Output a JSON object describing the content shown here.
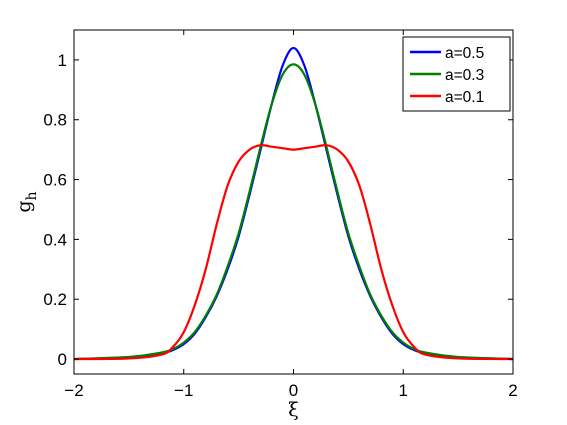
{
  "chart_data": {
    "type": "line",
    "xlabel": "ξ",
    "ylabel": "g",
    "ylabel_sub": "h",
    "xlim": [
      -2,
      2
    ],
    "ylim": [
      -0.05,
      1.1
    ],
    "xticks": [
      -2,
      -1,
      0,
      1,
      2
    ],
    "xtick_labels": [
      "−2",
      "−1",
      "0",
      "1",
      "2"
    ],
    "yticks": [
      0,
      0.2,
      0.4,
      0.6,
      0.8,
      1
    ],
    "ytick_labels": [
      "0",
      "0.2",
      "0.4",
      "0.6",
      "0.8",
      "1"
    ],
    "grid": false,
    "legend_position": "top-right",
    "x": [
      -2,
      -1.5,
      -1.2,
      -1.1,
      -1.0,
      -0.9,
      -0.8,
      -0.7,
      -0.6,
      -0.5,
      -0.4,
      -0.3,
      -0.2,
      -0.1,
      0,
      0.1,
      0.2,
      0.3,
      0.4,
      0.5,
      0.6,
      0.7,
      0.8,
      0.9,
      1.0,
      1.1,
      1.2,
      1.5,
      2
    ],
    "series": [
      {
        "name": "a=0.5",
        "color": "#0000ff",
        "values": [
          0.0,
          0.006,
          0.02,
          0.03,
          0.05,
          0.085,
          0.14,
          0.21,
          0.3,
          0.41,
          0.55,
          0.7,
          0.85,
          0.98,
          1.04,
          0.98,
          0.85,
          0.7,
          0.55,
          0.41,
          0.3,
          0.21,
          0.14,
          0.085,
          0.05,
          0.03,
          0.02,
          0.006,
          0.0
        ]
      },
      {
        "name": "a=0.3",
        "color": "#007f00",
        "values": [
          0.0,
          0.007,
          0.022,
          0.033,
          0.055,
          0.09,
          0.145,
          0.215,
          0.31,
          0.42,
          0.56,
          0.71,
          0.85,
          0.95,
          0.985,
          0.95,
          0.85,
          0.71,
          0.56,
          0.42,
          0.31,
          0.215,
          0.145,
          0.09,
          0.055,
          0.033,
          0.022,
          0.007,
          0.0
        ]
      },
      {
        "name": "a=0.1",
        "color": "#ff0000",
        "values": [
          0.0,
          0.002,
          0.015,
          0.04,
          0.09,
          0.18,
          0.3,
          0.45,
          0.58,
          0.66,
          0.7,
          0.715,
          0.71,
          0.705,
          0.7,
          0.705,
          0.71,
          0.715,
          0.7,
          0.66,
          0.58,
          0.45,
          0.3,
          0.18,
          0.09,
          0.04,
          0.015,
          0.002,
          0.0
        ]
      }
    ]
  }
}
